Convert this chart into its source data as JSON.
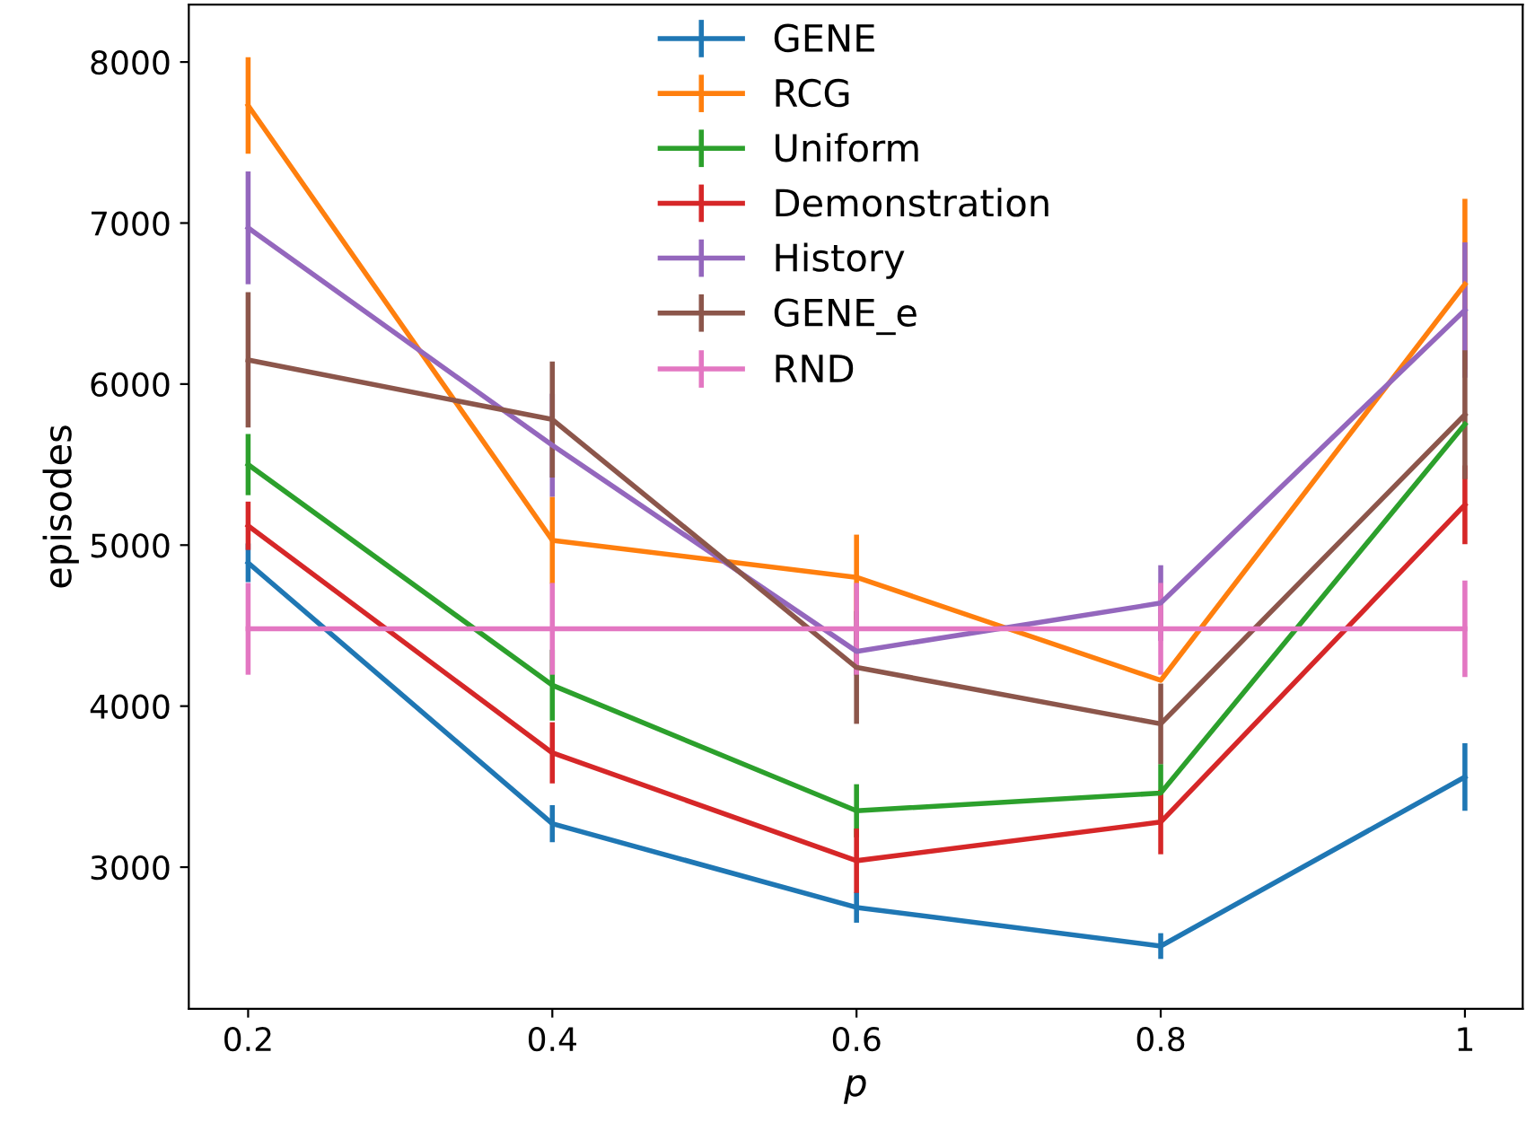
{
  "chart_data": {
    "type": "line",
    "xlabel": "p",
    "ylabel": "episodes",
    "x": [
      0.2,
      0.4,
      0.6,
      0.8,
      1
    ],
    "xlim": [
      0.161,
      1.038
    ],
    "ylim": [
      2120,
      8357
    ],
    "xticks": [
      0.2,
      0.4,
      0.6,
      0.8,
      1
    ],
    "yticks": [
      3000,
      4000,
      5000,
      6000,
      7000,
      8000
    ],
    "grid": false,
    "legend": "top",
    "marker": "none",
    "line_style": "solid",
    "series": [
      {
        "name": "GENE",
        "color": "#1f77b4",
        "values": [
          4890,
          3270,
          2750,
          2510,
          3560
        ],
        "errors": [
          120,
          115,
          95,
          80,
          210
        ]
      },
      {
        "name": "RCG",
        "color": "#ff7f0e",
        "values": [
          7730,
          5030,
          4800,
          4160,
          6620
        ],
        "errors": [
          300,
          270,
          265,
          null,
          530
        ]
      },
      {
        "name": "Uniform",
        "color": "#2ca02c",
        "values": [
          5500,
          4130,
          3350,
          3460,
          5750
        ],
        "errors": [
          190,
          220,
          165,
          180,
          null
        ]
      },
      {
        "name": "Demonstration",
        "color": "#d62728",
        "values": [
          5120,
          3710,
          3040,
          3280,
          5250
        ],
        "errors": [
          150,
          190,
          200,
          200,
          245
        ]
      },
      {
        "name": "History",
        "color": "#9467bd",
        "values": [
          6970,
          5620,
          4340,
          4640,
          6460
        ],
        "errors": [
          350,
          320,
          150,
          235,
          420
        ]
      },
      {
        "name": "GENE_e",
        "color": "#8c564b",
        "values": [
          6150,
          5780,
          4240,
          3890,
          5810
        ],
        "errors": [
          420,
          360,
          350,
          250,
          400
        ]
      },
      {
        "name": "RND",
        "color": "#e377c2",
        "values": [
          4480,
          4480,
          4480,
          4480,
          4480
        ],
        "errors": [
          285,
          285,
          285,
          285,
          300
        ]
      }
    ]
  }
}
